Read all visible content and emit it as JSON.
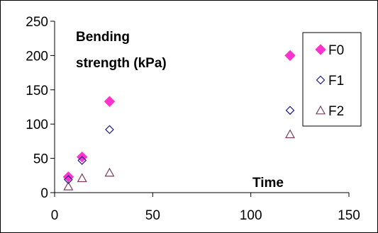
{
  "chart_data": {
    "type": "scatter",
    "title": "",
    "xlabel": "Time",
    "ylabel": "Bending strength (kPa)",
    "ylabel_lines": [
      "Bending",
      "strength (kPa)"
    ],
    "xlim": [
      0,
      150
    ],
    "ylim": [
      0,
      250
    ],
    "xticks": [
      0,
      50,
      100,
      150
    ],
    "yticks": [
      0,
      50,
      100,
      150,
      200,
      250
    ],
    "grid": false,
    "legend_position": "right",
    "series": [
      {
        "name": "F0",
        "marker": "filled-diamond",
        "color": "#ff33cc",
        "x": [
          7,
          14,
          28,
          120
        ],
        "y": [
          23,
          52,
          133,
          200
        ]
      },
      {
        "name": "F1",
        "marker": "open-diamond",
        "color": "#1a1a8c",
        "x": [
          7,
          14,
          28,
          120
        ],
        "y": [
          19,
          47,
          92,
          120
        ]
      },
      {
        "name": "F2",
        "marker": "open-triangle",
        "color": "#7a3d5c",
        "x": [
          7,
          14,
          28,
          120
        ],
        "y": [
          9,
          21,
          29,
          85
        ]
      }
    ]
  }
}
